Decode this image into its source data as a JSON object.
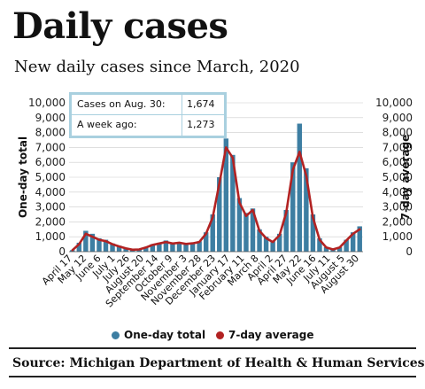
{
  "header": {
    "title": "Daily cases",
    "subtitle": "New daily cases since March, 2020"
  },
  "annotation": {
    "row1_label": "Cases on Aug. 30:",
    "row1_value": "1,674",
    "row2_label": "A week ago:",
    "row2_value": "1,273"
  },
  "legend": {
    "bar_label": "One-day total",
    "line_label": "7-day average"
  },
  "footer": {
    "source": "Source:  Michigan Department of Health & Human Services"
  },
  "colors": {
    "bars": "#3d7ea2",
    "line": "#b22222",
    "annotation_border": "#a9d0df",
    "gridline": "#cccccc"
  },
  "chart_data": {
    "type": "bar",
    "title": "Daily cases",
    "subtitle": "New daily cases since March, 2020",
    "ylabel_left": "One-day total",
    "ylabel_right": "7-day average",
    "ylim": [
      0,
      10000
    ],
    "yticks": [
      0,
      1000,
      2000,
      3000,
      4000,
      5000,
      6000,
      7000,
      8000,
      9000,
      10000
    ],
    "ytick_labels": [
      "0",
      "1,000",
      "2,000",
      "3,000",
      "4,000",
      "5,000",
      "6,000",
      "7,000",
      "8,000",
      "9,000",
      "10,000"
    ],
    "xtick_labels": [
      "April 17",
      "May 12",
      "June 6",
      "July 1",
      "July 26",
      "August 20",
      "September 14",
      "October 9",
      "November 3",
      "November 28",
      "December 23",
      "January 17",
      "February 11",
      "March 8",
      "April 2",
      "April 27",
      "May 22",
      "June 16",
      "July 11",
      "August 5",
      "August 30"
    ],
    "grid": true,
    "legend_position": "bottom",
    "series": [
      {
        "name": "One-day total",
        "kind": "bar",
        "values": [
          100,
          600,
          1400,
          1200,
          900,
          800,
          550,
          400,
          250,
          150,
          150,
          300,
          500,
          600,
          750,
          600,
          650,
          550,
          600,
          700,
          1300,
          2500,
          5000,
          7600,
          6500,
          3600,
          2600,
          2900,
          1500,
          1000,
          700,
          1200,
          2800,
          6000,
          8600,
          5600,
          2500,
          900,
          300,
          150,
          300,
          800,
          1300,
          1700
        ]
      },
      {
        "name": "7-day average",
        "kind": "line",
        "values": [
          100,
          500,
          1200,
          1000,
          800,
          700,
          500,
          350,
          220,
          130,
          150,
          280,
          450,
          550,
          650,
          550,
          600,
          520,
          560,
          650,
          1200,
          2300,
          4600,
          7000,
          6300,
          3300,
          2400,
          2800,
          1400,
          900,
          650,
          1100,
          2600,
          5500,
          6700,
          5100,
          2300,
          800,
          280,
          150,
          280,
          750,
          1200,
          1500
        ]
      }
    ]
  }
}
